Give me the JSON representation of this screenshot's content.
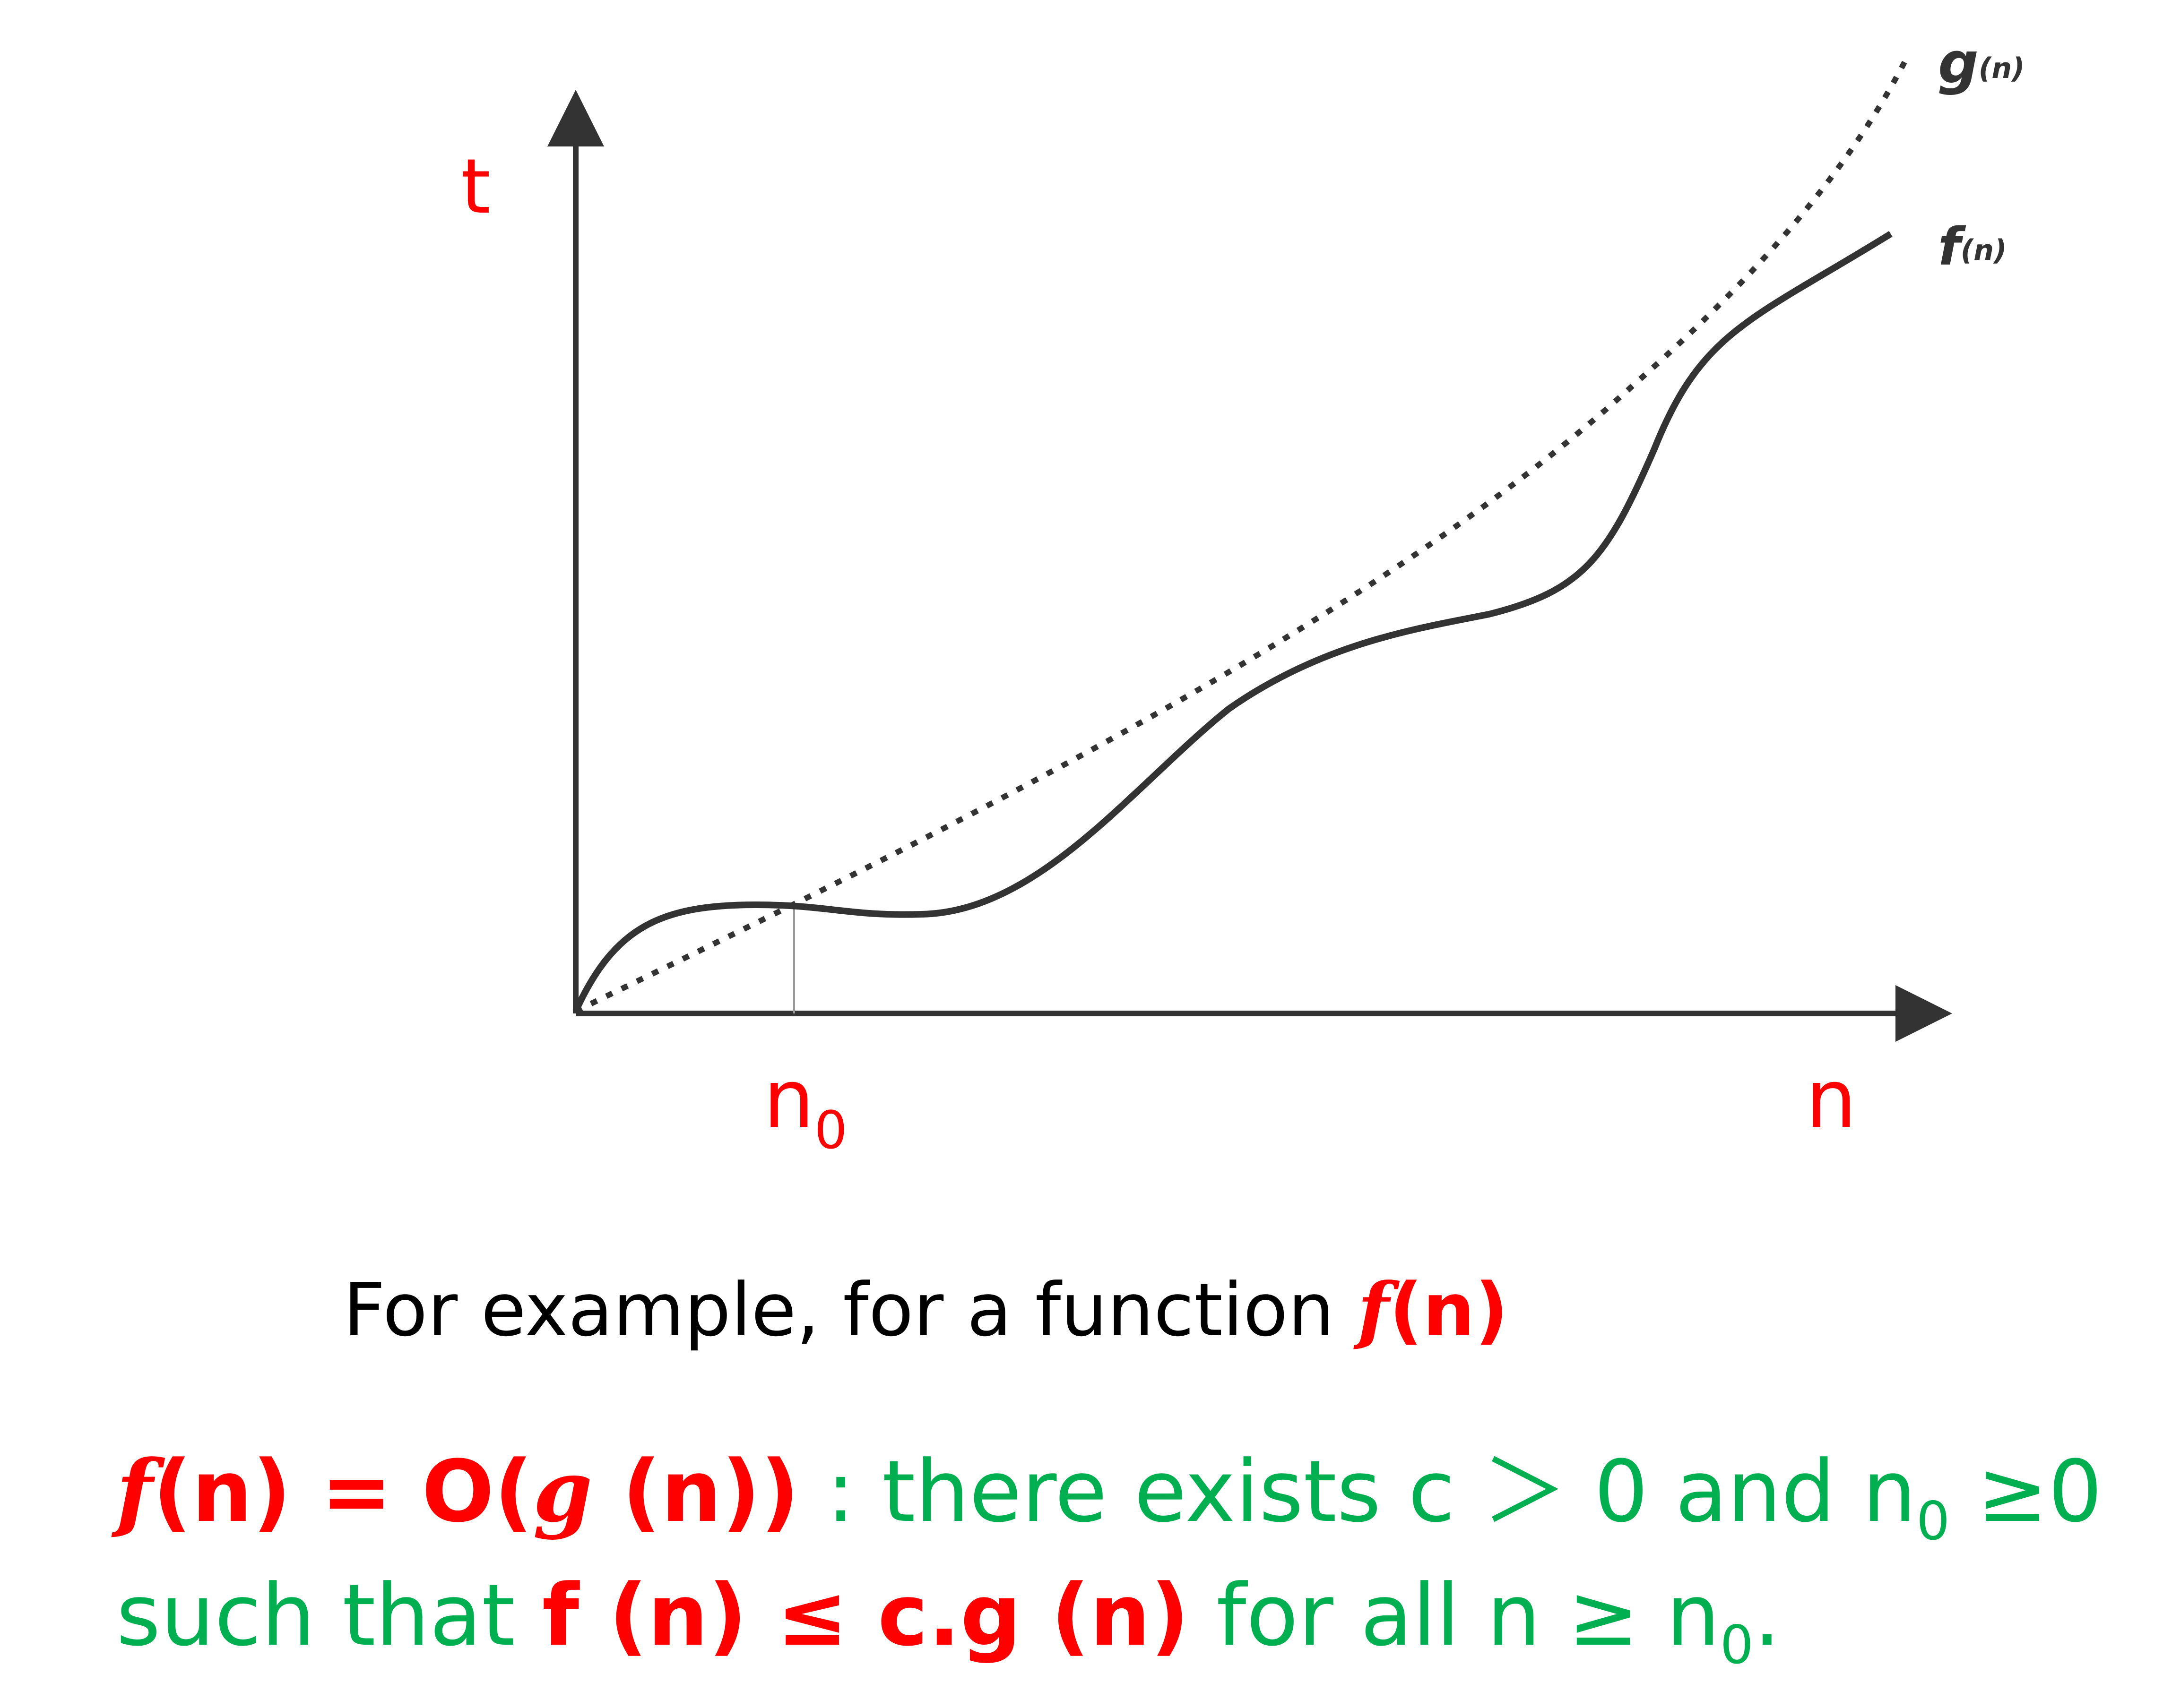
{
  "diagram": {
    "axis_labels": {
      "y": "t",
      "x": "n",
      "x_mark": "n",
      "x_mark_sub": "0"
    },
    "curves": [
      {
        "label": "g",
        "label_sub": "(n)",
        "style": "dashed"
      },
      {
        "label": "f",
        "label_sub": "(n)",
        "style": "solid"
      }
    ],
    "colors": {
      "axis_label": "#ff0000",
      "curve": "#333333",
      "highlight": "#ff0000",
      "condition": "#00b050"
    }
  },
  "caption": {
    "line1_text": "For example, for a function ",
    "line1_func": "f",
    "line1_arg": "(n)",
    "line2": {
      "f": "f",
      "n1": "(n) = O(",
      "g": "g",
      "n2": " (n))",
      "rest": " : there exists c ＞ 0 and n",
      "sub": "0",
      "tail": " ≥0"
    },
    "line3": {
      "start": "such that ",
      "cond": "f (n) ≤ c.g (n)",
      "mid": " for all n ≥ n",
      "sub": "0",
      "end": "."
    }
  }
}
